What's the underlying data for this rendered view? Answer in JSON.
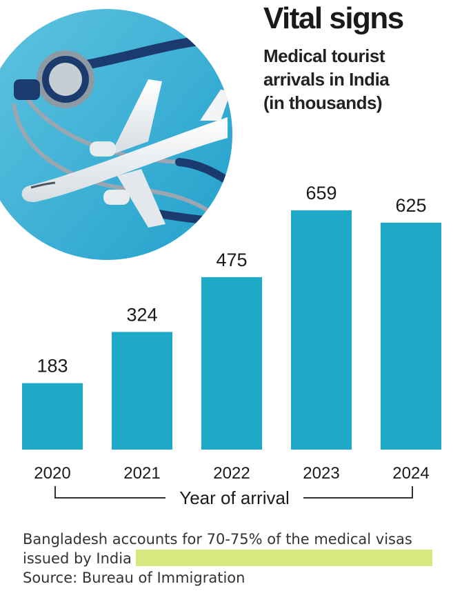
{
  "chart_data": {
    "type": "bar",
    "title": "Vital signs",
    "subtitle_lines": [
      "Medical tourist",
      "arrivals in India",
      "(in thousands)"
    ],
    "categories": [
      "2020",
      "2021",
      "2022",
      "2023",
      "2024"
    ],
    "values": [
      183,
      324,
      475,
      659,
      625
    ],
    "xlabel": "Year of arrival",
    "ylabel": "",
    "ylim": [
      0,
      700
    ],
    "grid": false,
    "legend": "none",
    "bar_color": "#1fa9c9"
  },
  "footer": {
    "note_line1": "Bangladesh accounts for 70-75% of the medical visas",
    "note_line2": "issued by India",
    "source": "Source: Bureau of Immigration",
    "highlight_color": "#d9e77f"
  }
}
